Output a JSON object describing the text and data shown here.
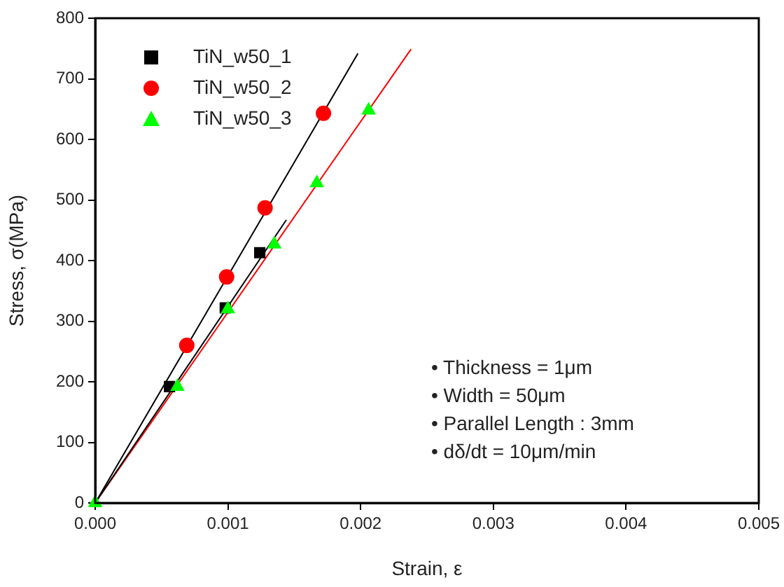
{
  "chart_data": {
    "type": "scatter",
    "xlabel": "Strain, ε",
    "ylabel": "Stress, σ(MPa)",
    "xlim": [
      0,
      0.005
    ],
    "xticks": [
      {
        "value": 0,
        "label": "0.000"
      },
      {
        "value": 0.001,
        "label": "0.001"
      },
      {
        "value": 0.002,
        "label": "0.002"
      },
      {
        "value": 0.003,
        "label": "0.003"
      },
      {
        "value": 0.004,
        "label": "0.004"
      },
      {
        "value": 0.005,
        "label": "0.005"
      }
    ],
    "ylim": [
      0,
      800
    ],
    "yticks": [
      0,
      100,
      200,
      300,
      400,
      500,
      600,
      700,
      800
    ],
    "grid": false,
    "legend": "top left",
    "series": [
      {
        "name": "TiN_w50_1",
        "marker": "square",
        "color": "#000000",
        "x": [
          0.00056,
          0.00098,
          0.00124
        ],
        "values": [
          192,
          322,
          413
        ]
      },
      {
        "name": "TiN_w50_2",
        "marker": "circle",
        "color": "#ff0000",
        "x": [
          0.00069,
          0.00099,
          0.00128,
          0.00172
        ],
        "values": [
          260,
          373,
          487,
          643
        ]
      },
      {
        "name": "TiN_w50_3",
        "marker": "triangle",
        "color": "#00ff00",
        "x": [
          0,
          0.00062,
          0.001,
          0.00135,
          0.00167,
          0.00206
        ],
        "values": [
          0,
          192,
          320,
          427,
          528,
          648
        ]
      },
      {
        "type": "line",
        "marker": "none",
        "color": "#000000",
        "x": [
          0,
          0.00144
        ],
        "values": [
          0,
          467
        ]
      },
      {
        "type": "line",
        "marker": "none",
        "color": "#000000",
        "x": [
          0,
          0.00198
        ],
        "values": [
          0,
          742
        ]
      },
      {
        "type": "line",
        "marker": "none",
        "color": "#ff0000",
        "x": [
          0,
          0.00238
        ],
        "values": [
          0,
          749
        ]
      }
    ],
    "annotations": [
      "• Thickness = 1μm",
      "• Width = 50μm",
      "• Parallel Length : 3mm",
      "• dδ/dt = 10μm/min"
    ]
  }
}
